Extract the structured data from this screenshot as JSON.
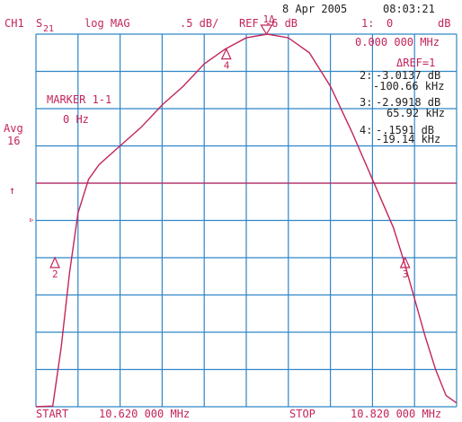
{
  "header": {
    "date": "8 Apr 2005",
    "time": "08:03:21",
    "channel": "CH1",
    "param": "S",
    "param_sub": "21",
    "format": "log MAG",
    "scale": ".5 dB/",
    "ref": "REF -6 dB",
    "marker_readout_id": "1:",
    "marker_readout_value": "0",
    "marker_readout_unit": "dB",
    "marker_freq": "0.000 000 MHz",
    "delta_ref": "ΔREF=1"
  },
  "left_annotations": {
    "avg_label": "Avg",
    "avg_count": "16",
    "up_arrow": "↑",
    "ref_pointer": "▹"
  },
  "marker_box": {
    "label": "MARKER 1-1",
    "value": "0 Hz"
  },
  "marker_table": [
    {
      "id": "2:",
      "value_db": "-3.0137 dB",
      "value_freq": "-100.66 kHz"
    },
    {
      "id": "3:",
      "value_db": "-2.9918 dB",
      "value_freq": "65.92 kHz"
    },
    {
      "id": "4:",
      "value_db": "-.1591 dB",
      "value_freq": "-19.14 kHz"
    }
  ],
  "footer": {
    "start_label": "START",
    "start_value": "10.620 000 MHz",
    "stop_label": "STOP",
    "stop_value": "10.820 000 MHz"
  },
  "markers": [
    {
      "label": "1Δ",
      "x_mhz": 10.7296,
      "y_db": -6.0
    },
    {
      "label": "2",
      "x_mhz": 10.629,
      "y_db": -9.0
    },
    {
      "label": "3",
      "x_mhz": 10.7955,
      "y_db": -9.0
    },
    {
      "label": "4",
      "x_mhz": 10.7105,
      "y_db": -6.2
    }
  ],
  "colors": {
    "trace": "#c4245a",
    "grid": "#2f86c8",
    "text": "#c4245a"
  },
  "chart_data": {
    "type": "line",
    "x_unit": "MHz",
    "y_unit": "dB",
    "xlim": [
      10.62,
      10.82
    ],
    "ylim": [
      -11.0,
      -6.0
    ],
    "reference_level_db": -8.0,
    "divisions": {
      "x": 10,
      "y": 10
    },
    "grid": true,
    "series": [
      {
        "x": [
          10.62,
          10.628,
          10.632,
          10.636,
          10.64,
          10.645,
          10.65,
          10.66,
          10.67,
          10.68,
          10.69,
          10.7,
          10.71,
          10.72,
          10.73,
          10.74,
          10.75,
          10.76,
          10.77,
          10.78,
          10.79,
          10.795,
          10.8,
          10.805,
          10.81,
          10.815,
          10.82
        ],
        "y": [
          -11.0,
          -10.99,
          -10.2,
          -9.2,
          -8.4,
          -7.95,
          -7.75,
          -7.5,
          -7.25,
          -6.95,
          -6.7,
          -6.4,
          -6.2,
          -6.05,
          -6.0,
          -6.05,
          -6.25,
          -6.7,
          -7.3,
          -7.95,
          -8.6,
          -9.05,
          -9.55,
          -10.05,
          -10.5,
          -10.85,
          -10.95
        ]
      }
    ]
  }
}
